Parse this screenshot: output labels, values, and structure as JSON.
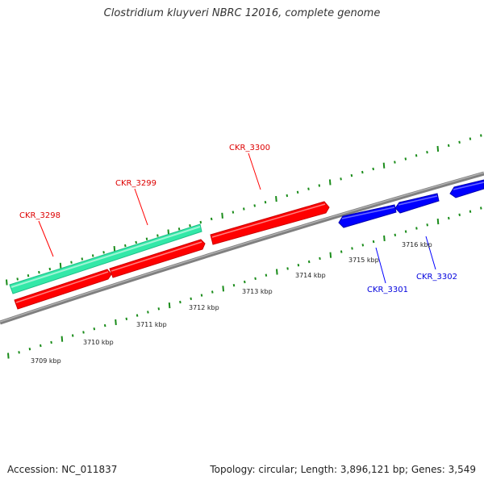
{
  "title": "Clostridium kluyveri NBRC 12016, complete genome",
  "footer": {
    "accession": "Accession: NC_011837",
    "summary": "Topology: circular; Length: 3,896,121 bp; Genes: 3,549"
  },
  "colors": {
    "forward_gene": "#ff0000",
    "reverse_gene": "#0000ff",
    "rna_gene": "#33e8a8",
    "backbone": "#808080",
    "tick": "#1a8c1a"
  },
  "scale": {
    "labels": [
      "3709 kbp",
      "3710 kbp",
      "3711 kbp",
      "3712 kbp",
      "3713 kbp",
      "3714 kbp",
      "3715 kbp",
      "3716 kbp"
    ]
  },
  "genes": [
    {
      "locus": "CKR_3298",
      "strand": "forward"
    },
    {
      "locus": "CKR_3299",
      "strand": "forward"
    },
    {
      "locus": "CKR_3300",
      "strand": "forward"
    },
    {
      "locus": "CKR_3301",
      "strand": "reverse"
    },
    {
      "locus": "CKR_3302",
      "strand": "reverse"
    }
  ]
}
